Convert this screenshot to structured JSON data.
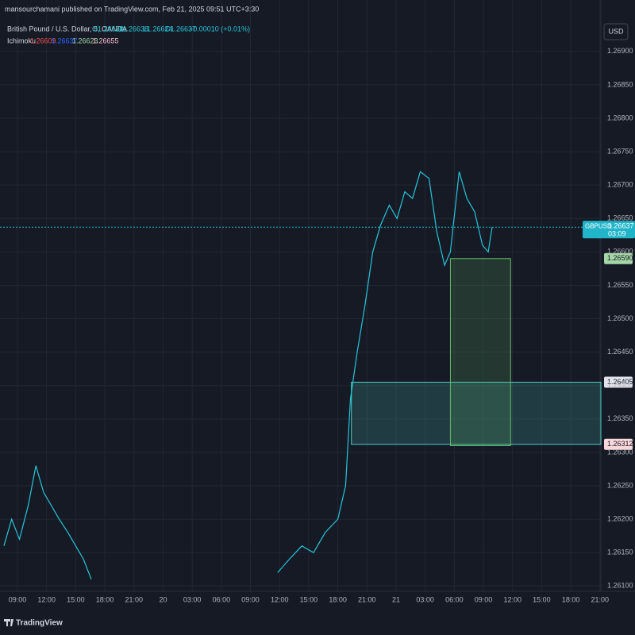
{
  "header": {
    "publisher": "mansourchamani published on TradingView.com, Feb 21, 2025 09:51 UTC+3:30",
    "symbol": "British Pound / U.S. Dollar, 5, OANDA",
    "ohlc": [
      "O1.26628",
      "H1.26638",
      "L1.26624",
      "C1.26637",
      "+0.00010 (+0.01%)"
    ],
    "indicator": "Ichimoku",
    "indicator_values": [
      1.26609,
      1.26637,
      1.26623,
      1.26655
    ],
    "currency": "USD",
    "brand": "TradingView"
  },
  "chart_data": {
    "type": "line",
    "x": [
      -1.4,
      -0.6,
      0.2,
      1.1,
      1.9,
      2.7,
      3.5,
      4.3,
      5.2,
      6.0,
      6.8,
      7.6,
      8.0,
      26.8,
      28.0,
      29.3,
      30.5,
      31.7,
      33.0,
      33.8,
      34.3,
      35.0,
      35.8,
      36.6,
      37.4,
      38.3,
      39.1,
      39.9,
      40.7,
      41.5,
      42.4,
      43.2,
      44.0,
      44.6,
      45.5,
      46.3,
      47.1,
      47.9,
      48.5,
      48.9
    ],
    "series": [
      {
        "name": "GBPUSD",
        "color": "#26c6da",
        "values": [
          1.2616,
          1.262,
          1.2617,
          1.2622,
          1.2628,
          1.2624,
          1.2622,
          1.262,
          1.2618,
          1.2616,
          1.2614,
          1.2611,
          null,
          1.2612,
          1.2614,
          1.2616,
          1.2615,
          1.2618,
          1.262,
          1.2625,
          1.2638,
          1.2645,
          1.2652,
          1.266,
          1.2664,
          1.2667,
          1.2665,
          1.2669,
          1.2668,
          1.2672,
          1.2671,
          1.2663,
          1.2658,
          1.266,
          1.2672,
          1.2668,
          1.2666,
          1.2661,
          1.266,
          1.26637
        ]
      }
    ],
    "xlim": [
      -1.8,
      60.1
    ],
    "xticks": [
      {
        "value": 0,
        "label": "09:00"
      },
      {
        "value": 3,
        "label": "12:00"
      },
      {
        "value": 6,
        "label": "15:00"
      },
      {
        "value": 9,
        "label": "18:00"
      },
      {
        "value": 12,
        "label": "21:00"
      },
      {
        "value": 15,
        "label": "20"
      },
      {
        "value": 18,
        "label": "03:00"
      },
      {
        "value": 21,
        "label": "06:00"
      },
      {
        "value": 24,
        "label": "09:00"
      },
      {
        "value": 27,
        "label": "12:00"
      },
      {
        "value": 30,
        "label": "15:00"
      },
      {
        "value": 33,
        "label": "18:00"
      },
      {
        "value": 36,
        "label": "21:00"
      },
      {
        "value": 39,
        "label": "21"
      },
      {
        "value": 42,
        "label": "03:00"
      },
      {
        "value": 45,
        "label": "06:00"
      },
      {
        "value": 48,
        "label": "09:00"
      },
      {
        "value": 51,
        "label": "12:00"
      },
      {
        "value": 54,
        "label": "15:00"
      },
      {
        "value": 57,
        "label": "18:00"
      },
      {
        "value": 60,
        "label": "21:00"
      }
    ],
    "ylim": [
      1.26092,
      1.26977
    ],
    "yticks": [
      {
        "value": 1.261,
        "label": "1.26100"
      },
      {
        "value": 1.2615,
        "label": "1.26150"
      },
      {
        "value": 1.262,
        "label": "1.26200"
      },
      {
        "value": 1.2625,
        "label": "1.26250"
      },
      {
        "value": 1.263,
        "label": "1.26300"
      },
      {
        "value": 1.2635,
        "label": "1.26350"
      },
      {
        "value": 1.264,
        "label": "1.26400"
      },
      {
        "value": 1.2645,
        "label": "1.26450"
      },
      {
        "value": 1.265,
        "label": "1.26500"
      },
      {
        "value": 1.2655,
        "label": "1.26550"
      },
      {
        "value": 1.266,
        "label": "1.26600"
      },
      {
        "value": 1.2665,
        "label": "1.26650"
      },
      {
        "value": 1.267,
        "label": "1.26700"
      },
      {
        "value": 1.2675,
        "label": "1.26750"
      },
      {
        "value": 1.268,
        "label": "1.26800"
      },
      {
        "value": 1.2685,
        "label": "1.26850"
      },
      {
        "value": 1.269,
        "label": "1.26900"
      }
    ],
    "grid": true,
    "zones": [
      {
        "x": [
          34.4,
          60.1
        ],
        "top": 1.26405,
        "bottom": 1.26312,
        "color": "#4dd0c8"
      },
      {
        "x": [
          44.6,
          50.8
        ],
        "top": 1.2659,
        "bottom": 1.2631,
        "color": "#66bb6a"
      }
    ],
    "last_price": {
      "name": "GBPUSD",
      "value": 1.26637,
      "time": "03:09",
      "color": "#22b5c9"
    },
    "price_tags": [
      {
        "value": 1.2659,
        "label": "1.26590",
        "color": "#a5d6a7"
      },
      {
        "value": 1.26405,
        "color": "#e0e3eb"
      },
      {
        "value": 1.26312,
        "color": "#f8d7da"
      }
    ]
  }
}
